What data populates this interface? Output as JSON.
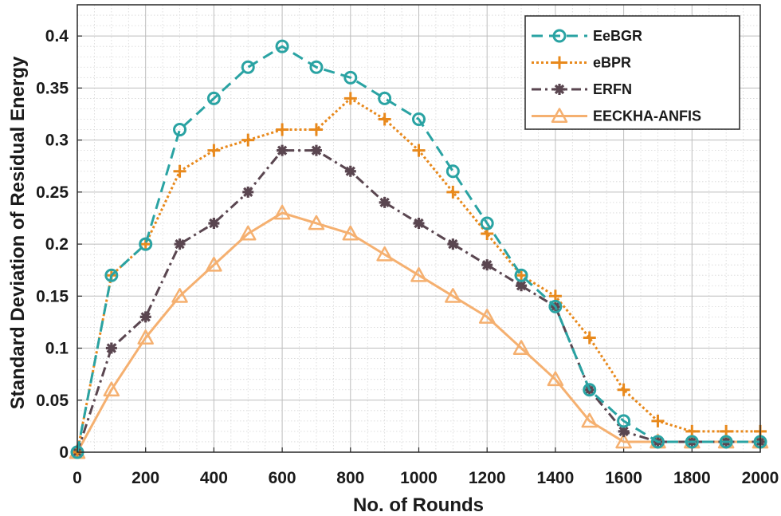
{
  "chart_data": {
    "type": "line",
    "title": "",
    "xlabel": "No. of Rounds",
    "ylabel": "Standard Deviation of Residual Energy",
    "xlim": [
      0,
      2000
    ],
    "ylim": [
      0,
      0.43
    ],
    "x_ticks": [
      0,
      200,
      400,
      600,
      800,
      1000,
      1200,
      1400,
      1600,
      1800,
      2000
    ],
    "x_tick_labels": [
      "0",
      "200",
      "400",
      "600",
      "800",
      "1000",
      "1200",
      "1400",
      "1600",
      "1800",
      "2000"
    ],
    "y_ticks": [
      0,
      0.05,
      0.1,
      0.15,
      0.2,
      0.25,
      0.3,
      0.35,
      0.4
    ],
    "y_tick_labels": [
      "0",
      "0.05",
      "0.1",
      "0.15",
      "0.2",
      "0.25",
      "0.3",
      "0.35",
      "0.4"
    ],
    "grid": true,
    "minor_grid": true,
    "legend_position": "top-right",
    "x": [
      0,
      100,
      200,
      300,
      400,
      500,
      600,
      700,
      800,
      900,
      1000,
      1100,
      1200,
      1300,
      1400,
      1500,
      1600,
      1700,
      1800,
      1900,
      2000
    ],
    "series": [
      {
        "name": "EeBGR",
        "color": "#2aa3a3",
        "marker": "circle",
        "line_style": "dashed",
        "values": [
          0,
          0.17,
          0.2,
          0.31,
          0.34,
          0.37,
          0.39,
          0.37,
          0.36,
          0.34,
          0.32,
          0.27,
          0.22,
          0.17,
          0.14,
          0.06,
          0.03,
          0.01,
          0.01,
          0.01,
          0.01
        ]
      },
      {
        "name": "eBPR",
        "color": "#e8891c",
        "marker": "plus",
        "line_style": "dotted",
        "values": [
          0,
          0.17,
          0.2,
          0.27,
          0.29,
          0.3,
          0.31,
          0.31,
          0.34,
          0.32,
          0.29,
          0.25,
          0.21,
          0.17,
          0.15,
          0.11,
          0.06,
          0.03,
          0.02,
          0.02,
          0.02
        ]
      },
      {
        "name": "ERFN",
        "color": "#5a4650",
        "marker": "asterisk",
        "line_style": "dashdot",
        "values": [
          0,
          0.1,
          0.13,
          0.2,
          0.22,
          0.25,
          0.29,
          0.29,
          0.27,
          0.24,
          0.22,
          0.2,
          0.18,
          0.16,
          0.14,
          0.06,
          0.02,
          0.01,
          0.01,
          0.01,
          0.01
        ]
      },
      {
        "name": "EECKHA-ANFIS",
        "color": "#f5b070",
        "marker": "triangle",
        "line_style": "solid",
        "values": [
          0,
          0.06,
          0.11,
          0.15,
          0.18,
          0.21,
          0.23,
          0.22,
          0.21,
          0.19,
          0.17,
          0.15,
          0.13,
          0.1,
          0.07,
          0.03,
          0.01,
          0.01,
          0.01,
          0.01,
          0.01
        ]
      }
    ]
  }
}
